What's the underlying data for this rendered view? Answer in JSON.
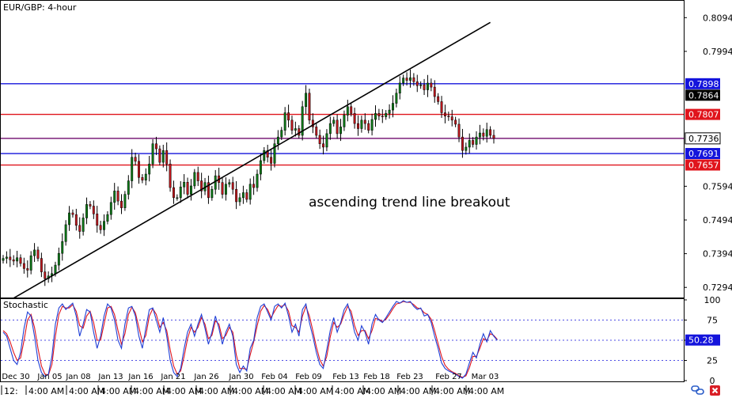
{
  "window": {
    "title": "EUR/GBP: 4-hour",
    "indicator_title": "Stochastic",
    "annotation": "ascending trend line breakout"
  },
  "colors": {
    "bull": "#0b7a16",
    "bear": "#c0161c",
    "wick": "#000000",
    "support_resistance_blue": "#1414dc",
    "support_resistance_red": "#e0141c",
    "current_price_line": "#7b1f7a",
    "trend_line": "#000000",
    "stoch_k": "#1f3fd6",
    "stoch_d": "#e0141c",
    "stoch_level": "#1414dc"
  },
  "chart_data": [
    {
      "type": "candlestick",
      "title": "EUR/GBP: 4-hour",
      "ylim": [
        0.7264,
        0.8144
      ],
      "y_ticks": [
        "0.8094",
        "0.7994",
        "0.7594",
        "0.7494",
        "0.7394",
        "0.7294"
      ],
      "x_ticks": [
        "Dec 30",
        "Jan 05",
        "Jan 08",
        "Jan 13",
        "Jan 16",
        "Jan 21",
        "Jan 26",
        "Jan 30",
        "Feb 04",
        "Feb 09",
        "Feb 13",
        "Feb 18",
        "Feb 23",
        "Feb 27",
        "Mar 03"
      ],
      "x_time_labels": [
        "12:",
        "4:00 AM",
        "4:00 AM",
        "4:00 AM",
        "4:00 AM",
        "4:00 AM",
        "4:00 AM",
        "4:00 AM",
        "4:00 AM",
        "4:00 AM",
        "4:00 AM",
        "4:00 AM",
        "4:00 AM",
        "4:00 AM",
        "4:00 AM",
        "4:00 AM"
      ],
      "horizontal_levels": [
        {
          "value": 0.7898,
          "label": "0.7898",
          "color": "blue"
        },
        {
          "value": 0.7807,
          "label": "0.7807",
          "color": "red"
        },
        {
          "value": 0.7736,
          "label": "0.7736",
          "color": "purple"
        },
        {
          "value": 0.7691,
          "label": "0.7691",
          "color": "blue"
        },
        {
          "value": 0.7657,
          "label": "0.7657",
          "color": "red"
        }
      ],
      "price_labels": [
        "0.7864",
        "0.7736"
      ],
      "trend_line": {
        "start": {
          "bar": 3,
          "price": 0.7262
        },
        "end": {
          "bar": 140,
          "price": 0.808
        }
      },
      "series": [
        {
          "values": [
            0.738,
            0.7384,
            0.7376,
            0.7372,
            0.7382,
            0.7365,
            0.735,
            0.7345,
            0.7388,
            0.7405,
            0.738,
            0.734,
            0.732,
            0.7328,
            0.7335,
            0.736,
            0.7395,
            0.743,
            0.748,
            0.7515,
            0.751,
            0.7478,
            0.746,
            0.75,
            0.754,
            0.7535,
            0.7512,
            0.7478,
            0.7465,
            0.749,
            0.751,
            0.7546,
            0.758,
            0.755,
            0.753,
            0.757,
            0.761,
            0.768,
            0.7668,
            0.762,
            0.7612,
            0.763,
            0.766,
            0.772,
            0.7705,
            0.7665,
            0.77,
            0.766,
            0.759,
            0.756,
            0.756,
            0.7592,
            0.7606,
            0.757,
            0.7595,
            0.7635,
            0.761,
            0.758,
            0.7605,
            0.756,
            0.7585,
            0.7625,
            0.7605,
            0.757,
            0.76,
            0.7605,
            0.7585,
            0.7548,
            0.756,
            0.7575,
            0.7555,
            0.76,
            0.759,
            0.763,
            0.767,
            0.77,
            0.768,
            0.7662,
            0.772,
            0.774,
            0.776,
            0.7812,
            0.779,
            0.776,
            0.7765,
            0.7745,
            0.783,
            0.787,
            0.779,
            0.777,
            0.7745,
            0.772,
            0.771,
            0.775,
            0.778,
            0.779,
            0.775,
            0.777,
            0.7805,
            0.783,
            0.781,
            0.778,
            0.7765,
            0.779,
            0.778,
            0.776,
            0.7792,
            0.781,
            0.7802,
            0.78,
            0.781,
            0.782,
            0.784,
            0.787,
            0.79,
            0.7915,
            0.7908,
            0.7916,
            0.7904,
            0.7892,
            0.7895,
            0.788,
            0.79,
            0.7888,
            0.786,
            0.7845,
            0.7812,
            0.7802,
            0.78,
            0.779,
            0.7778,
            0.774,
            0.77,
            0.771,
            0.773,
            0.7718,
            0.774,
            0.7752,
            0.7742,
            0.7762,
            0.7745,
            0.7736
          ]
        }
      ]
    },
    {
      "type": "line",
      "title": "Stochastic",
      "ylim": [
        0,
        100
      ],
      "y_ticks": [
        "100",
        "75",
        "50",
        "25",
        "0"
      ],
      "current_value_label": "50.28",
      "levels": [
        75,
        50,
        25
      ],
      "series": [
        {
          "values": [
            60,
            55,
            40,
            25,
            20,
            35,
            65,
            85,
            80,
            55,
            25,
            10,
            5,
            8,
            30,
            70,
            90,
            95,
            88,
            92,
            96,
            80,
            55,
            70,
            88,
            85,
            60,
            40,
            55,
            80,
            95,
            90,
            75,
            50,
            40,
            70,
            90,
            92,
            80,
            55,
            40,
            65,
            88,
            90,
            75,
            60,
            78,
            55,
            25,
            10,
            5,
            15,
            40,
            60,
            70,
            55,
            70,
            82,
            65,
            45,
            60,
            80,
            65,
            45,
            60,
            70,
            55,
            20,
            10,
            18,
            12,
            40,
            50,
            78,
            92,
            95,
            85,
            75,
            92,
            95,
            90,
            96,
            80,
            60,
            70,
            55,
            88,
            95,
            72,
            55,
            35,
            20,
            15,
            38,
            62,
            78,
            60,
            72,
            88,
            95,
            80,
            60,
            50,
            68,
            60,
            45,
            70,
            82,
            75,
            72,
            78,
            85,
            92,
            98,
            96,
            99,
            97,
            98,
            92,
            88,
            90,
            80,
            82,
            72,
            55,
            40,
            22,
            15,
            12,
            10,
            8,
            5,
            3,
            8,
            22,
            35,
            28,
            45,
            58,
            48,
            62,
            55,
            50
          ]
        },
        {
          "values": [
            62,
            58,
            48,
            35,
            25,
            28,
            50,
            75,
            82,
            66,
            40,
            18,
            8,
            7,
            20,
            55,
            82,
            92,
            90,
            90,
            94,
            86,
            68,
            65,
            80,
            86,
            72,
            50,
            50,
            70,
            90,
            92,
            82,
            62,
            45,
            58,
            82,
            91,
            84,
            66,
            48,
            56,
            80,
            89,
            82,
            66,
            72,
            62,
            38,
            18,
            8,
            12,
            30,
            52,
            66,
            60,
            66,
            78,
            70,
            52,
            56,
            74,
            70,
            52,
            56,
            66,
            60,
            32,
            15,
            15,
            14,
            32,
            48,
            68,
            86,
            93,
            88,
            78,
            86,
            93,
            92,
            94,
            86,
            68,
            66,
            60,
            80,
            92,
            80,
            62,
            42,
            26,
            18,
            30,
            54,
            72,
            66,
            70,
            82,
            92,
            86,
            68,
            56,
            62,
            62,
            52,
            62,
            77,
            76,
            73,
            76,
            82,
            89,
            95,
            96,
            98,
            97,
            97,
            94,
            90,
            89,
            84,
            82,
            76,
            62,
            46,
            30,
            19,
            14,
            11,
            9,
            6,
            4,
            6,
            16,
            30,
            30,
            40,
            52,
            50,
            58,
            56,
            51
          ]
        }
      ]
    }
  ]
}
